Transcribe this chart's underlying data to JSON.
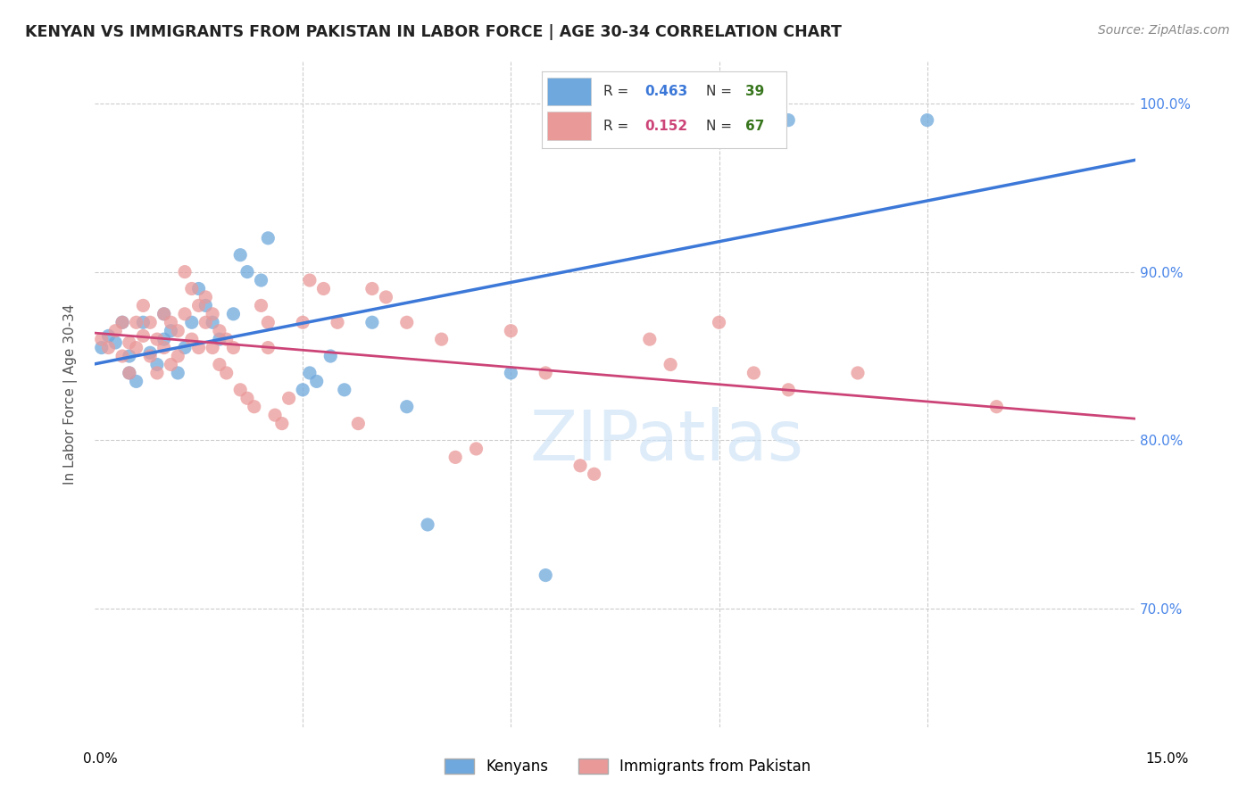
{
  "title": "KENYAN VS IMMIGRANTS FROM PAKISTAN IN LABOR FORCE | AGE 30-34 CORRELATION CHART",
  "source": "Source: ZipAtlas.com",
  "ylabel": "In Labor Force | Age 30-34",
  "xlim": [
    0.0,
    0.15
  ],
  "ylim": [
    0.63,
    1.025
  ],
  "blue_R": 0.463,
  "blue_N": 39,
  "pink_R": 0.152,
  "pink_N": 67,
  "blue_color": "#6fa8dc",
  "pink_color": "#ea9999",
  "blue_line_color": "#3c78d8",
  "pink_line_color": "#cc4477",
  "green_color": "#38761d",
  "blue_scatter": [
    [
      0.001,
      0.855
    ],
    [
      0.002,
      0.862
    ],
    [
      0.003,
      0.858
    ],
    [
      0.004,
      0.87
    ],
    [
      0.005,
      0.85
    ],
    [
      0.005,
      0.84
    ],
    [
      0.006,
      0.835
    ],
    [
      0.007,
      0.87
    ],
    [
      0.008,
      0.852
    ],
    [
      0.009,
      0.845
    ],
    [
      0.01,
      0.875
    ],
    [
      0.01,
      0.86
    ],
    [
      0.011,
      0.865
    ],
    [
      0.012,
      0.84
    ],
    [
      0.013,
      0.855
    ],
    [
      0.014,
      0.87
    ],
    [
      0.015,
      0.89
    ],
    [
      0.016,
      0.88
    ],
    [
      0.017,
      0.87
    ],
    [
      0.018,
      0.86
    ],
    [
      0.02,
      0.875
    ],
    [
      0.021,
      0.91
    ],
    [
      0.022,
      0.9
    ],
    [
      0.024,
      0.895
    ],
    [
      0.025,
      0.92
    ],
    [
      0.03,
      0.83
    ],
    [
      0.031,
      0.84
    ],
    [
      0.032,
      0.835
    ],
    [
      0.034,
      0.85
    ],
    [
      0.036,
      0.83
    ],
    [
      0.04,
      0.87
    ],
    [
      0.045,
      0.82
    ],
    [
      0.048,
      0.75
    ],
    [
      0.06,
      0.84
    ],
    [
      0.065,
      0.72
    ],
    [
      0.07,
      0.99
    ],
    [
      0.075,
      0.985
    ],
    [
      0.1,
      0.99
    ],
    [
      0.12,
      0.99
    ]
  ],
  "pink_scatter": [
    [
      0.001,
      0.86
    ],
    [
      0.002,
      0.855
    ],
    [
      0.003,
      0.865
    ],
    [
      0.004,
      0.87
    ],
    [
      0.004,
      0.85
    ],
    [
      0.005,
      0.858
    ],
    [
      0.005,
      0.84
    ],
    [
      0.006,
      0.87
    ],
    [
      0.006,
      0.855
    ],
    [
      0.007,
      0.88
    ],
    [
      0.007,
      0.862
    ],
    [
      0.008,
      0.87
    ],
    [
      0.008,
      0.85
    ],
    [
      0.009,
      0.86
    ],
    [
      0.009,
      0.84
    ],
    [
      0.01,
      0.875
    ],
    [
      0.01,
      0.855
    ],
    [
      0.011,
      0.87
    ],
    [
      0.011,
      0.845
    ],
    [
      0.012,
      0.865
    ],
    [
      0.012,
      0.85
    ],
    [
      0.013,
      0.9
    ],
    [
      0.013,
      0.875
    ],
    [
      0.014,
      0.89
    ],
    [
      0.014,
      0.86
    ],
    [
      0.015,
      0.88
    ],
    [
      0.015,
      0.855
    ],
    [
      0.016,
      0.885
    ],
    [
      0.016,
      0.87
    ],
    [
      0.017,
      0.875
    ],
    [
      0.017,
      0.855
    ],
    [
      0.018,
      0.865
    ],
    [
      0.018,
      0.845
    ],
    [
      0.019,
      0.86
    ],
    [
      0.019,
      0.84
    ],
    [
      0.02,
      0.855
    ],
    [
      0.021,
      0.83
    ],
    [
      0.022,
      0.825
    ],
    [
      0.023,
      0.82
    ],
    [
      0.024,
      0.88
    ],
    [
      0.025,
      0.87
    ],
    [
      0.025,
      0.855
    ],
    [
      0.026,
      0.815
    ],
    [
      0.027,
      0.81
    ],
    [
      0.028,
      0.825
    ],
    [
      0.03,
      0.87
    ],
    [
      0.031,
      0.895
    ],
    [
      0.033,
      0.89
    ],
    [
      0.035,
      0.87
    ],
    [
      0.038,
      0.81
    ],
    [
      0.04,
      0.89
    ],
    [
      0.042,
      0.885
    ],
    [
      0.045,
      0.87
    ],
    [
      0.05,
      0.86
    ],
    [
      0.052,
      0.79
    ],
    [
      0.055,
      0.795
    ],
    [
      0.06,
      0.865
    ],
    [
      0.065,
      0.84
    ],
    [
      0.07,
      0.785
    ],
    [
      0.072,
      0.78
    ],
    [
      0.08,
      0.86
    ],
    [
      0.083,
      0.845
    ],
    [
      0.09,
      0.87
    ],
    [
      0.095,
      0.84
    ],
    [
      0.1,
      0.83
    ],
    [
      0.11,
      0.84
    ],
    [
      0.13,
      0.82
    ]
  ],
  "yticks": [
    0.7,
    0.8,
    0.9,
    1.0
  ],
  "ytick_labels": [
    "70.0%",
    "80.0%",
    "90.0%",
    "100.0%"
  ],
  "xticks": [
    0.0,
    0.03,
    0.06,
    0.09,
    0.12,
    0.15
  ],
  "hgrid_values": [
    0.7,
    0.8,
    0.9,
    1.0
  ],
  "vgrid_values": [
    0.03,
    0.06,
    0.09,
    0.12
  ]
}
